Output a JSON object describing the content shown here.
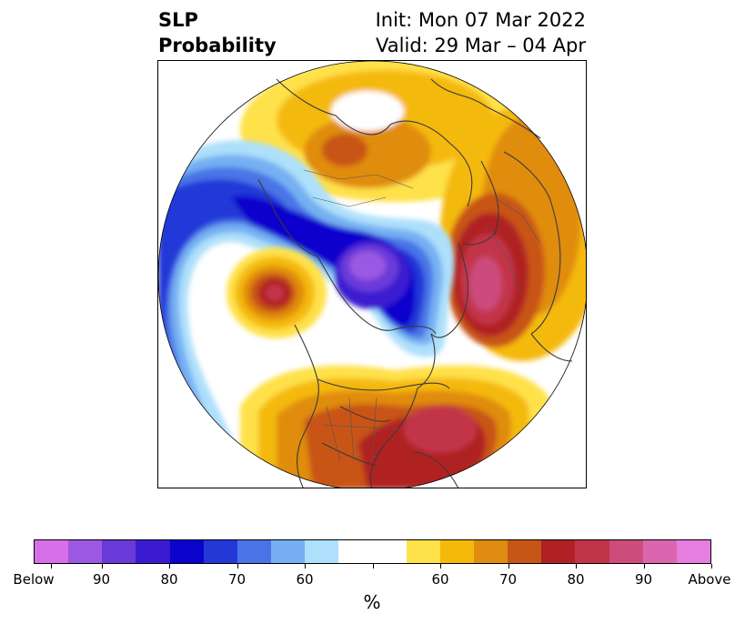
{
  "title": {
    "left_line1": "SLP",
    "left_line2": "Probability",
    "right_line1": "Init: Mon 07 Mar 2022",
    "right_line2": "Valid: 29 Mar – 04 Apr"
  },
  "colorbar": {
    "units": "%",
    "colors": [
      "#d76fe8",
      "#9b59e2",
      "#6a3ad8",
      "#3a1ad0",
      "#0a04cc",
      "#2438d8",
      "#4a74e6",
      "#76b0f2",
      "#aee0fb",
      "#ffffff",
      "#ffe14a",
      "#f4b90a",
      "#e08c10",
      "#c85518",
      "#b02024",
      "#c23448",
      "#cc4c7c",
      "#db66b0",
      "#e67ee0"
    ],
    "tick_labels": [
      "Below",
      "90",
      "80",
      "70",
      "60",
      "",
      "60",
      "70",
      "80",
      "90",
      "Above"
    ]
  }
}
